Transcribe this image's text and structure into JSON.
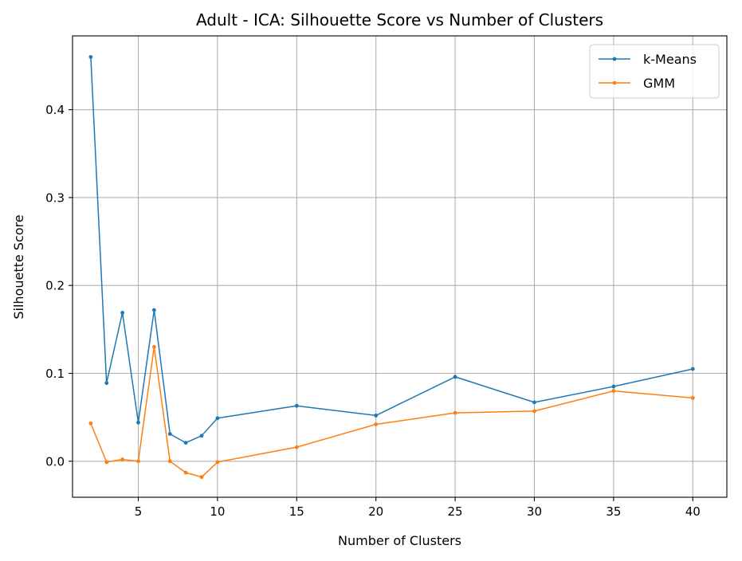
{
  "chart_data": {
    "type": "line",
    "title": "Adult - ICA: Silhouette Score vs Number of Clusters",
    "xlabel": "Number of Clusters",
    "ylabel": "Silhouette Score",
    "xlim": [
      0.85,
      42.15
    ],
    "ylim": [
      -0.041,
      0.484
    ],
    "xticks": [
      5,
      10,
      15,
      20,
      25,
      30,
      35,
      40
    ],
    "yticks": [
      0.0,
      0.1,
      0.2,
      0.3,
      0.4
    ],
    "ytick_labels": [
      "0.0",
      "0.1",
      "0.2",
      "0.3",
      "0.4"
    ],
    "grid": true,
    "legend_position": "top-right",
    "series": [
      {
        "name": "k-Means",
        "color": "#1f77b4",
        "x": [
          2,
          3,
          4,
          5,
          6,
          7,
          8,
          9,
          10,
          15,
          20,
          25,
          30,
          35,
          40
        ],
        "y": [
          0.46,
          0.089,
          0.169,
          0.044,
          0.172,
          0.031,
          0.021,
          0.029,
          0.049,
          0.063,
          0.052,
          0.096,
          0.067,
          0.085,
          0.105
        ]
      },
      {
        "name": "GMM",
        "color": "#ff7f0e",
        "x": [
          2,
          3,
          4,
          5,
          6,
          7,
          8,
          9,
          10,
          15,
          20,
          25,
          30,
          35,
          40
        ],
        "y": [
          0.043,
          -0.001,
          0.002,
          0.0,
          0.13,
          0.0,
          -0.013,
          -0.018,
          -0.001,
          0.016,
          0.042,
          0.055,
          0.057,
          0.08,
          0.072
        ]
      }
    ]
  }
}
